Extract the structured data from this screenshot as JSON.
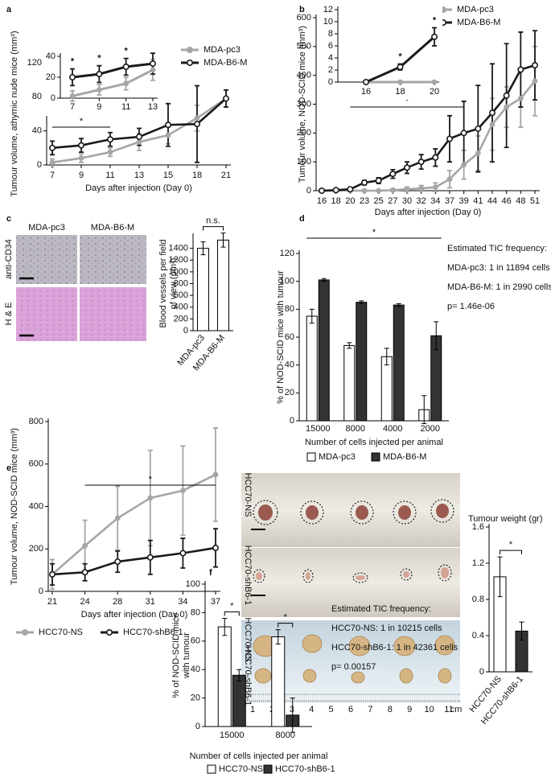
{
  "chart_data": [
    {
      "type": "line",
      "panel": "a",
      "ylabel": "Tumour volume, athymic nude mice (mm³)",
      "xlabel": "Days after injection (Day 0)",
      "categories": [
        "7",
        "9",
        "11",
        "13",
        "15",
        "18",
        "21"
      ],
      "ylim": [
        0,
        120
      ],
      "yticks": [
        0,
        40,
        80,
        120
      ],
      "series": [
        {
          "name": "MDA-pc3",
          "color": "#a6a6a6",
          "marker": "filled",
          "values": [
            3,
            8,
            15,
            27,
            35,
            55,
            78
          ],
          "errors": [
            4,
            5,
            5,
            10,
            10,
            15,
            10
          ]
        },
        {
          "name": "MDA-B6-M",
          "color": "#1a1a1a",
          "marker": "open",
          "values": [
            20,
            23,
            30,
            33,
            47,
            48,
            78
          ],
          "errors": [
            8,
            8,
            8,
            10,
            25,
            45,
            10
          ]
        }
      ],
      "significance": [
        {
          "label": "*",
          "from": "7",
          "to": "11"
        }
      ]
    },
    {
      "type": "line",
      "categories": [
        "7",
        "9",
        "11",
        "13"
      ],
      "ylim": [
        0,
        40
      ],
      "yticks": [
        0,
        20,
        40
      ],
      "series": [
        {
          "color": "#a6a6a6",
          "marker": "filled",
          "values": [
            2,
            8,
            14,
            27
          ],
          "errors": [
            5,
            5,
            6,
            10
          ]
        },
        {
          "color": "#1a1a1a",
          "marker": "open",
          "values": [
            20,
            23,
            30,
            33
          ],
          "errors": [
            8,
            8,
            8,
            10
          ]
        }
      ],
      "markers": [
        {
          "label": "*",
          "category": "7"
        },
        {
          "label": "*",
          "category": "9"
        },
        {
          "label": "*",
          "category": "11"
        }
      ]
    },
    {
      "type": "line",
      "panel": "b",
      "ylabel": "Tumour volume, NOD-SCID mice (mm³)",
      "xlabel": "Days after injection (Day 0)",
      "categories": [
        "16",
        "18",
        "20",
        "23",
        "25",
        "27",
        "30",
        "32",
        "34",
        "37",
        "39",
        "41",
        "44",
        "46",
        "48",
        "51"
      ],
      "ylim": [
        0,
        600
      ],
      "yticks": [
        0,
        100,
        200,
        300,
        400,
        500,
        600
      ],
      "series": [
        {
          "name": "MDA-pc3",
          "color": "#a6a6a6",
          "marker": "filled",
          "values": [
            0,
            0,
            0,
            0,
            0,
            2,
            5,
            8,
            12,
            40,
            90,
            130,
            230,
            290,
            320,
            380
          ],
          "errors": [
            0,
            0,
            0,
            0,
            0,
            5,
            8,
            10,
            15,
            30,
            50,
            60,
            90,
            70,
            100,
            120
          ]
        },
        {
          "name": "MDA-B6-M",
          "color": "#1a1a1a",
          "marker": "open",
          "values": [
            0,
            2,
            5,
            28,
            35,
            58,
            80,
            100,
            115,
            180,
            200,
            215,
            270,
            330,
            420,
            435
          ],
          "errors": [
            0,
            2,
            5,
            8,
            10,
            15,
            20,
            25,
            30,
            80,
            110,
            150,
            170,
            180,
            130,
            120
          ]
        }
      ],
      "significance": [
        {
          "label": "*",
          "from": "20",
          "to": "39"
        }
      ]
    },
    {
      "type": "line",
      "categories": [
        "16",
        "18",
        "20"
      ],
      "ylim": [
        0,
        12
      ],
      "yticks": [
        0,
        2,
        4,
        6,
        8,
        10,
        12
      ],
      "series": [
        {
          "color": "#a6a6a6",
          "marker": "filled",
          "values": [
            0,
            0,
            0
          ],
          "errors": [
            0,
            0,
            0
          ]
        },
        {
          "color": "#1a1a1a",
          "marker": "open",
          "values": [
            0,
            2.5,
            7.5
          ],
          "errors": [
            0,
            0.5,
            1.5
          ]
        }
      ],
      "markers": [
        {
          "label": "*",
          "category": "18"
        },
        {
          "label": "*",
          "category": "20"
        }
      ]
    },
    {
      "type": "bar",
      "panel": "c",
      "ylabel": [
        "Blood vessels per field",
        "of view (μm²)"
      ],
      "categories": [
        "MDA-pc3",
        "MDA-B6-M"
      ],
      "values": [
        1400,
        1540
      ],
      "errors": [
        110,
        120
      ],
      "color": "#ffffff",
      "ylim": [
        0,
        1600
      ],
      "yticks": [
        0,
        200,
        400,
        600,
        800,
        1000,
        1200,
        1400
      ],
      "significance": [
        {
          "label": "n.s.",
          "from": "MDA-pc3",
          "to": "MDA-B6-M"
        }
      ]
    },
    {
      "type": "bar",
      "panel": "d",
      "ylabel": "% of NOD-SCID mice with tumour",
      "xlabel": "Number of cells injected per animal",
      "categories": [
        "15000",
        "8000",
        "4000",
        "2000"
      ],
      "ylim": [
        0,
        120
      ],
      "yticks": [
        0,
        20,
        40,
        60,
        80,
        100,
        120
      ],
      "series": [
        {
          "name": "MDA-pc3",
          "color": "#ffffff",
          "values": [
            75,
            54,
            46,
            8
          ],
          "errors": [
            5,
            2,
            6,
            10
          ]
        },
        {
          "name": "MDA-B6-M",
          "color": "#333333",
          "values": [
            101,
            85,
            83,
            61
          ],
          "errors": [
            1,
            1,
            1,
            10
          ]
        }
      ],
      "significance": [
        {
          "label": "*",
          "from": "15000",
          "to": "2000"
        }
      ],
      "notes": [
        "Estimated TIC frequency:",
        "MDA-pc3: 1 in 11894 cells",
        "MDA-B6-M: 1 in 2990 cells",
        "p= 1.46e-06"
      ]
    },
    {
      "type": "line",
      "panel": "e",
      "ylabel": "Tumour volume, NOD-SCID mice (mm³)",
      "xlabel": "Days after injection (Day 0)",
      "categories": [
        "21",
        "24",
        "28",
        "31",
        "34",
        "37"
      ],
      "ylim": [
        0,
        800
      ],
      "yticks": [
        0,
        200,
        400,
        600,
        800
      ],
      "series": [
        {
          "name": "HCC70-NS",
          "color": "#a6a6a6",
          "marker": "filled",
          "values": [
            80,
            215,
            345,
            440,
            475,
            550
          ],
          "errors": [
            70,
            120,
            150,
            225,
            210,
            220
          ]
        },
        {
          "name": "HCC70-shB6-1",
          "color": "#1a1a1a",
          "marker": "open",
          "values": [
            80,
            90,
            140,
            160,
            180,
            205
          ],
          "errors": [
            50,
            40,
            50,
            80,
            70,
            90
          ]
        }
      ],
      "significance": [
        {
          "label": "*",
          "from": "24",
          "to": "37"
        }
      ]
    },
    {
      "type": "bar",
      "title": "Tumour weight (gr)",
      "categories": [
        "HCC70-NS",
        "HCC70-shB6-1"
      ],
      "values": [
        1.05,
        0.45
      ],
      "errors": [
        0.22,
        0.1
      ],
      "colors": [
        "#ffffff",
        "#333333"
      ],
      "ylim": [
        0,
        1.6
      ],
      "yticks": [
        0,
        0.4,
        0.8,
        1.2,
        1.6
      ],
      "significance": [
        {
          "label": "*",
          "from": "HCC70-NS",
          "to": "HCC70-shB6-1"
        }
      ]
    },
    {
      "type": "bar",
      "panel": "f",
      "ylabel": [
        "% of NOD-SCID mice",
        "with tumour"
      ],
      "xlabel": "Number of cells injected per animal",
      "categories": [
        "15000",
        "8000"
      ],
      "ylim": [
        0,
        100
      ],
      "yticks": [
        0,
        20,
        40,
        60,
        80,
        100
      ],
      "series": [
        {
          "name": "HCC70-NS",
          "color": "#ffffff",
          "values": [
            70,
            63
          ],
          "errors": [
            6,
            5
          ]
        },
        {
          "name": "HCC70-shB6-1",
          "color": "#333333",
          "values": [
            36,
            8
          ],
          "errors": [
            4,
            12
          ]
        }
      ],
      "significance": [
        {
          "label": "*",
          "category": "15000"
        },
        {
          "label": "*",
          "category": "8000"
        }
      ],
      "notes": [
        "Estimated TIC frequency:",
        "HCC70-NS: 1 in 10215 cells",
        "HCC70-shB6-1: 1 in 42361 cells",
        "p= 0.00157"
      ]
    }
  ],
  "image_panels": {
    "c": {
      "columns": [
        "MDA-pc3",
        "MDA-B6-M"
      ],
      "rows": [
        "anti-CD34",
        "H & E"
      ]
    },
    "e": {
      "rows": [
        "HCC70-NS",
        "HCC70-shB6-1",
        "HCC70-NS",
        "HCC70-shB6-1"
      ],
      "ruler": [
        1,
        2,
        3,
        4,
        5,
        6,
        7,
        8,
        9,
        10,
        11
      ],
      "unit": "cm"
    }
  }
}
